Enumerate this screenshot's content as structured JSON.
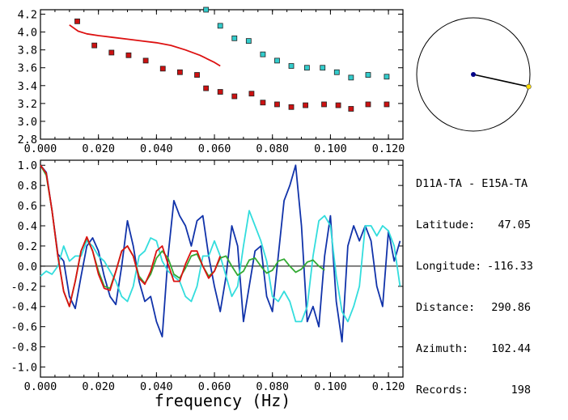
{
  "station_pair": "D11A-TA - E15A-TA",
  "info": [
    {
      "label": "Latitude:",
      "value": "47.05"
    },
    {
      "label": "Longitude:",
      "value": "-116.33"
    },
    {
      "label": "Distance:",
      "value": "290.86"
    },
    {
      "label": "Azimuth:",
      "value": "102.44"
    },
    {
      "label": "Records:",
      "value": "198"
    }
  ],
  "colors": {
    "red_points": "#cc1111",
    "cyan_points": "#33cccc",
    "red_line": "#dd1111",
    "blue_line": "#1133aa",
    "cyan_line": "#33dddd",
    "green_line": "#33aa33",
    "compass_dot": "#000088",
    "compass_end": "#ffdd00"
  },
  "compass": {
    "azimuth_deg": 102.44
  },
  "chart_data": [
    {
      "type": "scatter",
      "xlim": [
        0.0,
        0.125
      ],
      "ylim": [
        2.8,
        4.25
      ],
      "xticks": [
        "0.000",
        "0.020",
        "0.040",
        "0.060",
        "0.080",
        "0.100",
        "0.120"
      ],
      "yticks": [
        "2.8",
        "3.0",
        "3.2",
        "3.4",
        "3.6",
        "3.8",
        "4.0",
        "4.2"
      ],
      "series": [
        {
          "marker": "square",
          "color": "#cc1111",
          "x": [
            0.0127,
            0.0186,
            0.0245,
            0.0304,
            0.0363,
            0.0422,
            0.0481,
            0.054,
            0.0571,
            0.062,
            0.0669,
            0.0728,
            0.0767,
            0.0816,
            0.0865,
            0.0914,
            0.0978,
            0.1027,
            0.1071,
            0.113,
            0.1194
          ],
          "y": [
            4.12,
            3.85,
            3.77,
            3.74,
            3.68,
            3.59,
            3.55,
            3.52,
            3.37,
            3.33,
            3.28,
            3.31,
            3.21,
            3.19,
            3.16,
            3.18,
            3.19,
            3.18,
            3.14,
            3.19,
            3.19
          ]
        },
        {
          "marker": "square",
          "color": "#33cccc",
          "x": [
            0.0571,
            0.062,
            0.0669,
            0.0718,
            0.0767,
            0.0816,
            0.0865,
            0.0919,
            0.0973,
            0.1022,
            0.1071,
            0.113,
            0.1194
          ],
          "y": [
            4.25,
            4.07,
            3.93,
            3.9,
            3.75,
            3.68,
            3.62,
            3.6,
            3.6,
            3.55,
            3.49,
            3.52,
            3.5
          ]
        },
        {
          "type": "line",
          "color": "#dd1111",
          "x": [
            0.01,
            0.013,
            0.016,
            0.02,
            0.025,
            0.03,
            0.035,
            0.04,
            0.045,
            0.05,
            0.055,
            0.06,
            0.062
          ],
          "y": [
            4.08,
            4.01,
            3.98,
            3.96,
            3.94,
            3.92,
            3.9,
            3.88,
            3.85,
            3.8,
            3.74,
            3.66,
            3.62
          ]
        }
      ]
    },
    {
      "type": "line",
      "xlabel": "frequency (Hz)",
      "xlim": [
        0.0,
        0.125
      ],
      "ylim": [
        -1.1,
        1.05
      ],
      "xticks": [
        "0.000",
        "0.020",
        "0.040",
        "0.060",
        "0.080",
        "0.100",
        "0.120"
      ],
      "yticks": [
        "1.0",
        "0.8",
        "0.6",
        "0.4",
        "0.2",
        "0.0",
        "-0.2",
        "-0.4",
        "-0.6",
        "-0.8",
        "-1.0"
      ],
      "series": [
        {
          "color": "#1133aa",
          "x": [
            0.0,
            0.002,
            0.004,
            0.006,
            0.008,
            0.01,
            0.012,
            0.014,
            0.016,
            0.018,
            0.02,
            0.022,
            0.024,
            0.026,
            0.028,
            0.03,
            0.032,
            0.034,
            0.036,
            0.038,
            0.04,
            0.042,
            0.044,
            0.046,
            0.048,
            0.05,
            0.052,
            0.054,
            0.056,
            0.058,
            0.06,
            0.062,
            0.064,
            0.066,
            0.068,
            0.07,
            0.072,
            0.074,
            0.076,
            0.078,
            0.08,
            0.082,
            0.084,
            0.086,
            0.088,
            0.09,
            0.092,
            0.094,
            0.096,
            0.098,
            0.1,
            0.102,
            0.104,
            0.106,
            0.108,
            0.11,
            0.112,
            0.114,
            0.116,
            0.118,
            0.12,
            0.122,
            0.124
          ],
          "y": [
            1.0,
            0.93,
            0.55,
            0.12,
            0.05,
            -0.3,
            -0.42,
            -0.1,
            0.2,
            0.28,
            0.15,
            -0.1,
            -0.3,
            -0.38,
            0.0,
            0.45,
            0.2,
            -0.15,
            -0.35,
            -0.3,
            -0.55,
            -0.7,
            0.1,
            0.65,
            0.5,
            0.4,
            0.2,
            0.45,
            0.5,
            0.1,
            -0.2,
            -0.45,
            -0.1,
            0.4,
            0.2,
            -0.55,
            -0.2,
            0.15,
            0.2,
            -0.3,
            -0.45,
            0.1,
            0.65,
            0.8,
            1.0,
            0.4,
            -0.55,
            -0.4,
            -0.6,
            0.1,
            0.5,
            -0.35,
            -0.75,
            0.2,
            0.4,
            0.25,
            0.4,
            0.25,
            -0.2,
            -0.4,
            0.35,
            0.05,
            0.25
          ]
        },
        {
          "color": "#33dddd",
          "x": [
            0.0,
            0.002,
            0.004,
            0.006,
            0.008,
            0.01,
            0.012,
            0.014,
            0.016,
            0.018,
            0.02,
            0.022,
            0.024,
            0.026,
            0.028,
            0.03,
            0.032,
            0.034,
            0.036,
            0.038,
            0.04,
            0.042,
            0.044,
            0.046,
            0.048,
            0.05,
            0.052,
            0.054,
            0.056,
            0.058,
            0.06,
            0.062,
            0.064,
            0.066,
            0.068,
            0.07,
            0.072,
            0.074,
            0.076,
            0.078,
            0.08,
            0.082,
            0.084,
            0.086,
            0.088,
            0.09,
            0.092,
            0.094,
            0.096,
            0.098,
            0.1,
            0.102,
            0.104,
            0.106,
            0.108,
            0.11,
            0.112,
            0.114,
            0.116,
            0.118,
            0.12,
            0.122,
            0.124
          ],
          "y": [
            -0.1,
            -0.05,
            -0.08,
            0.0,
            0.2,
            0.05,
            0.1,
            0.1,
            0.25,
            0.2,
            0.1,
            0.05,
            -0.05,
            -0.15,
            -0.3,
            -0.35,
            -0.2,
            0.1,
            0.15,
            0.28,
            0.25,
            0.05,
            -0.05,
            -0.1,
            -0.15,
            -0.3,
            -0.35,
            -0.2,
            0.1,
            0.1,
            0.25,
            0.1,
            -0.1,
            -0.3,
            -0.2,
            0.2,
            0.55,
            0.4,
            0.25,
            0.05,
            -0.3,
            -0.35,
            -0.25,
            -0.35,
            -0.55,
            -0.55,
            -0.4,
            0.1,
            0.45,
            0.5,
            0.4,
            -0.1,
            -0.45,
            -0.55,
            -0.4,
            -0.2,
            0.4,
            0.4,
            0.3,
            0.4,
            0.35,
            0.2,
            -0.2
          ]
        },
        {
          "color": "#33aa33",
          "x": [
            0.0,
            0.002,
            0.004,
            0.006,
            0.008,
            0.01,
            0.012,
            0.014,
            0.016,
            0.018,
            0.02,
            0.022,
            0.024,
            0.026,
            0.028,
            0.03,
            0.032,
            0.034,
            0.036,
            0.038,
            0.04,
            0.042,
            0.044,
            0.046,
            0.048,
            0.05,
            0.052,
            0.054,
            0.056,
            0.058,
            0.06,
            0.062,
            0.064,
            0.066,
            0.068,
            0.07,
            0.072,
            0.074,
            0.076,
            0.078,
            0.08,
            0.082,
            0.084,
            0.086,
            0.088,
            0.09,
            0.092,
            0.094,
            0.096,
            0.098
          ],
          "y": [
            1.0,
            0.9,
            0.55,
            0.1,
            -0.25,
            -0.4,
            -0.15,
            0.15,
            0.28,
            0.15,
            -0.05,
            -0.2,
            -0.22,
            -0.05,
            0.15,
            0.2,
            0.1,
            -0.1,
            -0.17,
            -0.08,
            0.08,
            0.15,
            0.08,
            -0.08,
            -0.12,
            -0.02,
            0.1,
            0.12,
            0.0,
            -0.1,
            -0.05,
            0.08,
            0.1,
            0.0,
            -0.09,
            -0.05,
            0.06,
            0.08,
            0.0,
            -0.07,
            -0.04,
            0.05,
            0.07,
            0.0,
            -0.06,
            -0.03,
            0.04,
            0.06,
            0.0,
            -0.04
          ]
        },
        {
          "color": "#dd1111",
          "x": [
            0.0,
            0.002,
            0.004,
            0.006,
            0.008,
            0.01,
            0.012,
            0.014,
            0.016,
            0.018,
            0.02,
            0.022,
            0.024,
            0.026,
            0.028,
            0.03,
            0.032,
            0.034,
            0.036,
            0.038,
            0.04,
            0.042,
            0.044,
            0.046,
            0.048,
            0.05,
            0.052,
            0.054,
            0.056,
            0.058,
            0.06,
            0.062
          ],
          "y": [
            1.0,
            0.92,
            0.55,
            0.1,
            -0.25,
            -0.4,
            -0.15,
            0.15,
            0.29,
            0.15,
            -0.08,
            -0.22,
            -0.24,
            -0.05,
            0.15,
            0.2,
            0.1,
            -0.12,
            -0.18,
            -0.05,
            0.15,
            0.2,
            0.02,
            -0.15,
            -0.15,
            0.02,
            0.15,
            0.15,
            0.0,
            -0.12,
            -0.05,
            0.1
          ]
        }
      ]
    }
  ]
}
